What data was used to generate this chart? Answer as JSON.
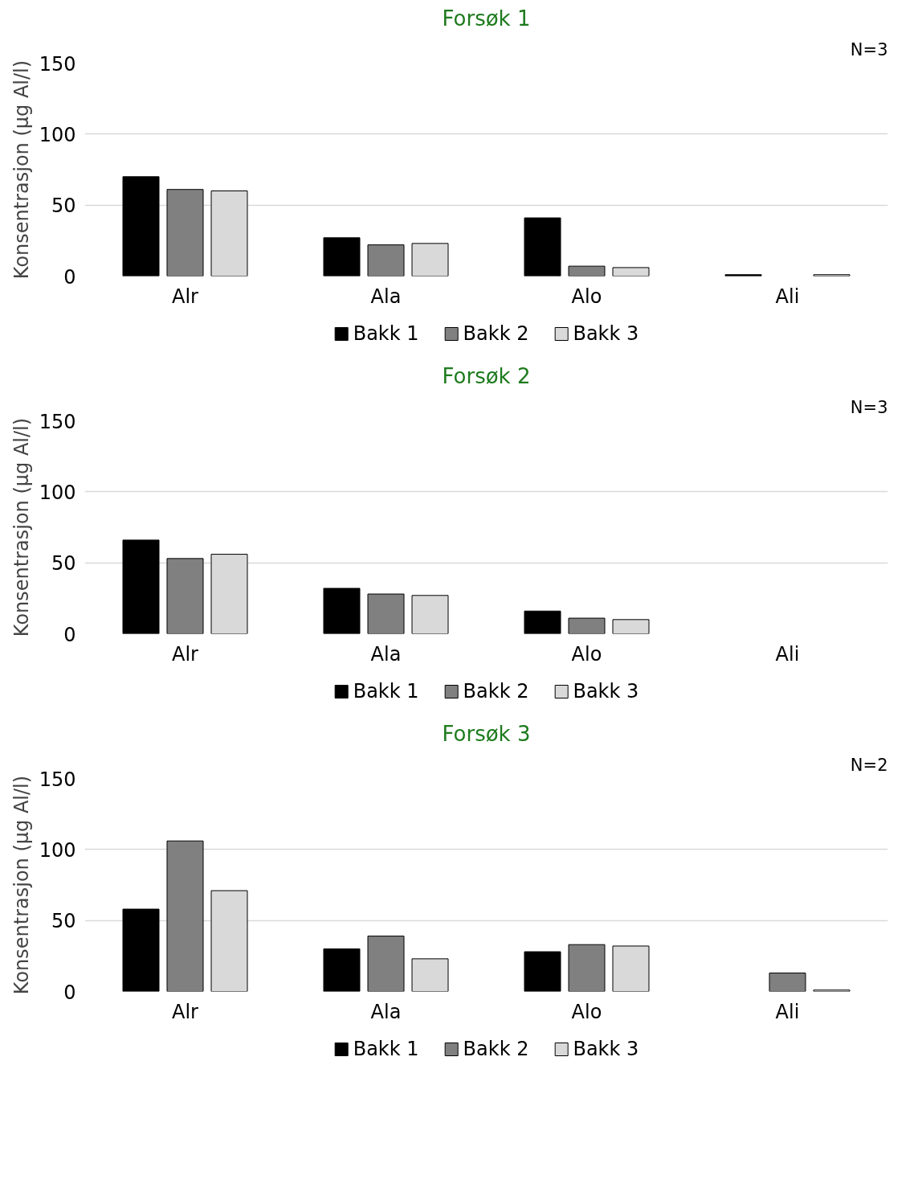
{
  "chart_data": [
    {
      "type": "bar",
      "title": "Forsøk 1",
      "ylabel": "Konsentrasjon (µg Al/l)",
      "annotations": [
        "N=3"
      ],
      "categories": [
        "Alr",
        "Ala",
        "Alo",
        "Ali"
      ],
      "ylim": [
        0,
        150
      ],
      "yticks": [
        0,
        50,
        100,
        150
      ],
      "grid": "y",
      "legend": "bottom",
      "series": [
        {
          "name": "Bakk 1",
          "color": "#000000",
          "values": [
            70,
            27,
            41,
            1
          ]
        },
        {
          "name": "Bakk 2",
          "color": "#808080",
          "values": [
            61,
            22,
            7,
            null
          ]
        },
        {
          "name": "Bakk 3",
          "color": "#d9d9d9",
          "values": [
            60,
            23,
            6,
            1
          ]
        }
      ]
    },
    {
      "type": "bar",
      "title": "Forsøk 2",
      "ylabel": "Konsentrasjon (µg Al/l)",
      "annotations": [
        "N=3"
      ],
      "categories": [
        "Alr",
        "Ala",
        "Alo",
        "Ali"
      ],
      "ylim": [
        0,
        150
      ],
      "yticks": [
        0,
        50,
        100,
        150
      ],
      "grid": "y",
      "legend": "bottom",
      "series": [
        {
          "name": "Bakk 1",
          "color": "#000000",
          "values": [
            66,
            32,
            16,
            null
          ]
        },
        {
          "name": "Bakk 2",
          "color": "#808080",
          "values": [
            53,
            28,
            11,
            null
          ]
        },
        {
          "name": "Bakk 3",
          "color": "#d9d9d9",
          "values": [
            56,
            27,
            10,
            null
          ]
        }
      ]
    },
    {
      "type": "bar",
      "title": "Forsøk 3",
      "ylabel": "Konsentrasjon (µg Al/l)",
      "annotations": [
        "N=2"
      ],
      "categories": [
        "Alr",
        "Ala",
        "Alo",
        "Ali"
      ],
      "ylim": [
        0,
        150
      ],
      "yticks": [
        0,
        50,
        100,
        150
      ],
      "grid": "y",
      "legend": "bottom",
      "series": [
        {
          "name": "Bakk 1",
          "color": "#000000",
          "values": [
            58,
            30,
            28,
            null
          ]
        },
        {
          "name": "Bakk 2",
          "color": "#808080",
          "values": [
            106,
            39,
            33,
            13
          ]
        },
        {
          "name": "Bakk 3",
          "color": "#d9d9d9",
          "values": [
            71,
            23,
            32,
            1
          ]
        }
      ]
    }
  ]
}
